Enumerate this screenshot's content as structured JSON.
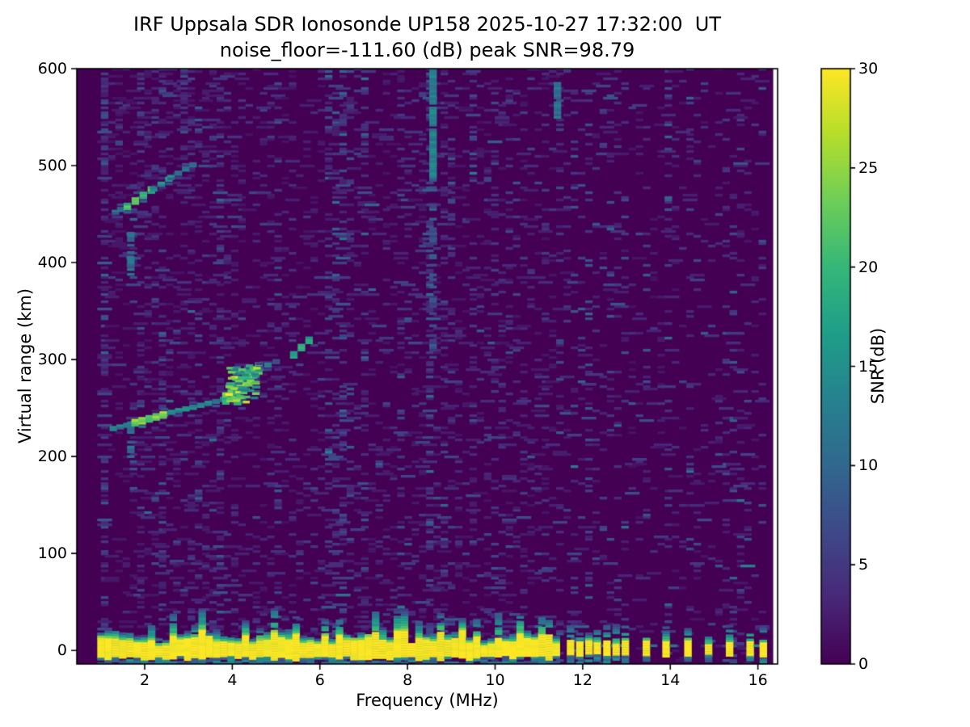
{
  "chart_data": {
    "type": "heatmap",
    "title": "IRF Uppsala SDR Ionosonde UP158 2025-10-27 17:32:00  UT",
    "subtitle": "noise_floor=-111.60 (dB) peak SNR=98.79",
    "xlabel": "Frequency (MHz)",
    "ylabel": "Virtual range (km)",
    "xlim": [
      0.45,
      16.45
    ],
    "ylim": [
      -14,
      600
    ],
    "x_ticks": [
      2,
      4,
      6,
      8,
      10,
      12,
      14,
      16
    ],
    "y_ticks": [
      0,
      100,
      200,
      300,
      400,
      500,
      600
    ],
    "grid": false,
    "background_color": "#440154",
    "colorbar": {
      "label": "SNR (dB)",
      "ticks": [
        0,
        5,
        10,
        15,
        20,
        25,
        30
      ],
      "vmin": 0,
      "vmax": 30,
      "colormap": "viridis",
      "colors": [
        "#440154",
        "#482878",
        "#3e4989",
        "#31688e",
        "#26828e",
        "#1f9e89",
        "#35b779",
        "#6ece58",
        "#b5de2b",
        "#fde725"
      ]
    },
    "data_extent": {
      "f_min": 1.0,
      "f_max": 16.32
    },
    "cell": {
      "df": 0.165,
      "dkm": 2.5
    },
    "noise": {
      "seed": 1337,
      "density": 0.17
    },
    "ground_band": {
      "f_range": [
        1.0,
        11.55
      ],
      "km_core": [
        -6,
        12
      ],
      "core_snr": 30,
      "fringe_snr": 16,
      "bump_freqs": [
        2.1,
        2.62,
        3.3,
        4.25,
        4.9,
        5.5,
        6.05,
        6.45,
        7.3,
        8.3,
        8.75,
        9.2,
        9.65,
        10.1,
        10.55,
        11.0,
        11.3
      ],
      "spike": {
        "f": 7.85,
        "core_top_km": 22,
        "fringe_top_km": 42
      }
    },
    "discrete_pulses": {
      "freqs": [
        11.72,
        11.93,
        12.14,
        12.33,
        12.55,
        12.76,
        12.97,
        13.45,
        13.9,
        14.4,
        14.87,
        15.35,
        15.82,
        16.12
      ],
      "km_core": [
        -4,
        10
      ],
      "core_snr": 30,
      "fringe_top_km": 22
    },
    "traces": [
      {
        "name": "first-hop-echo",
        "segments": [
          {
            "points": [
              [
                1.28,
                229
              ],
              [
                1.75,
                234
              ],
              [
                2.45,
                244
              ],
              [
                3.1,
                251
              ],
              [
                3.8,
                259
              ]
            ],
            "snr": 13,
            "thickness_km": 6
          },
          {
            "points": [
              [
                1.78,
                235
              ],
              [
                2.42,
                243
              ]
            ],
            "snr": 23,
            "thickness_km": 7
          },
          {
            "points": [
              [
                3.85,
                260
              ],
              [
                4.1,
                270
              ],
              [
                4.35,
                283
              ],
              [
                4.6,
                291
              ]
            ],
            "snr": 21,
            "thickness_km": 12
          },
          {
            "points": [
              [
                4.62,
                291
              ],
              [
                5.0,
                298
              ]
            ],
            "snr": 10,
            "thickness_km": 5
          },
          {
            "points": [
              [
                5.4,
                305
              ],
              [
                5.75,
                320
              ]
            ],
            "snr": 17,
            "thickness_km": 7
          }
        ],
        "cusp_blob": {
          "f_range": [
            3.92,
            4.58
          ],
          "km_range": [
            252,
            294
          ],
          "snr_range": [
            10,
            27
          ],
          "points": 70
        }
      },
      {
        "name": "second-hop-echo",
        "segments": [
          {
            "points": [
              [
                1.33,
                452
              ],
              [
                1.45,
                455
              ]
            ],
            "snr": 11,
            "thickness_km": 5
          },
          {
            "points": [
              [
                1.6,
                458
              ],
              [
                2.15,
                475
              ]
            ],
            "snr": 20,
            "thickness_km": 8
          },
          {
            "points": [
              [
                2.2,
                476
              ],
              [
                2.55,
                486
              ]
            ],
            "snr": 14,
            "thickness_km": 6
          },
          {
            "points": [
              [
                2.6,
                488
              ],
              [
                3.1,
                501
              ]
            ],
            "snr": 12,
            "thickness_km": 5
          }
        ]
      }
    ],
    "interference_columns": {
      "solid_segments": [
        {
          "f": 8.58,
          "km_range": [
            487,
            600
          ],
          "snr": 13,
          "fill": 0.95
        },
        {
          "f": 8.58,
          "km_range": [
            300,
            487
          ],
          "snr": 7,
          "fill": 0.35
        },
        {
          "f": 11.42,
          "km_range": [
            550,
            586
          ],
          "snr": 11,
          "fill": 0.9
        },
        {
          "f": 1.68,
          "km_range": [
            200,
            236
          ],
          "snr": 11,
          "fill": 0.8
        },
        {
          "f": 1.68,
          "km_range": [
            388,
            432
          ],
          "snr": 10,
          "fill": 0.7
        }
      ],
      "stripes": [
        {
          "f": 1.03,
          "s": 2.2
        },
        {
          "f": 1.68,
          "s": 2.0,
          "km_range": [
            160,
            260
          ]
        },
        {
          "f": 1.68,
          "s": 2.0,
          "km_range": [
            370,
            445
          ]
        },
        {
          "f": 2.33,
          "s": 1.5
        },
        {
          "f": 2.86,
          "s": 1.9,
          "km_range": [
            430,
            600
          ]
        },
        {
          "f": 3.2,
          "s": 1.3
        },
        {
          "f": 3.86,
          "s": 1.4
        },
        {
          "f": 4.55,
          "s": 1.3
        },
        {
          "f": 5.03,
          "s": 1.5
        },
        {
          "f": 5.37,
          "s": 1.4,
          "km_range": [
            120,
            500
          ]
        },
        {
          "f": 6.28,
          "s": 1.5
        },
        {
          "f": 6.61,
          "s": 1.3
        },
        {
          "f": 6.94,
          "s": 1.7
        },
        {
          "f": 7.28,
          "s": 1.3
        },
        {
          "f": 8.09,
          "s": 1.2
        },
        {
          "f": 8.58,
          "s": 1.8
        },
        {
          "f": 9.0,
          "s": 1.5
        },
        {
          "f": 9.55,
          "s": 1.4
        },
        {
          "f": 10.02,
          "s": 1.3
        },
        {
          "f": 10.48,
          "s": 1.4
        },
        {
          "f": 11.05,
          "s": 1.3
        },
        {
          "f": 11.42,
          "s": 1.5
        },
        {
          "f": 11.72,
          "s": 1.3
        },
        {
          "f": 11.93,
          "s": 1.3
        },
        {
          "f": 12.14,
          "s": 1.3
        },
        {
          "f": 12.33,
          "s": 1.3
        },
        {
          "f": 12.55,
          "s": 1.3
        },
        {
          "f": 12.76,
          "s": 1.3
        },
        {
          "f": 12.97,
          "s": 1.3
        },
        {
          "f": 13.45,
          "s": 1.4
        },
        {
          "f": 13.9,
          "s": 1.4
        },
        {
          "f": 14.4,
          "s": 1.4
        },
        {
          "f": 14.87,
          "s": 1.4
        },
        {
          "f": 15.35,
          "s": 1.5
        },
        {
          "f": 15.82,
          "s": 1.5
        },
        {
          "f": 16.12,
          "s": 1.4
        }
      ]
    }
  }
}
